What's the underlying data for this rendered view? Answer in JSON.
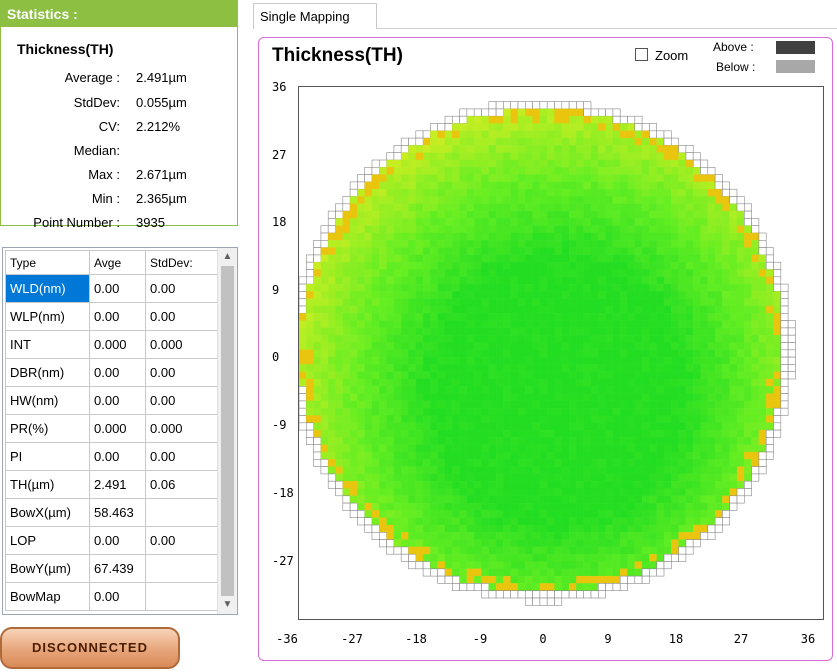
{
  "statistics": {
    "header": "Statistics :",
    "title": "Thickness(TH)",
    "rows": [
      {
        "label": "Average :",
        "value": "2.491µm"
      },
      {
        "label": "StdDev:",
        "value": "0.055µm"
      },
      {
        "label": "CV:",
        "value": "2.212%"
      },
      {
        "label": "Median:",
        "value": ""
      },
      {
        "label": "Max :",
        "value": "2.671µm"
      },
      {
        "label": "Min :",
        "value": "2.365µm"
      },
      {
        "label": "Point Number :",
        "value": "3935"
      }
    ]
  },
  "grid": {
    "columns": [
      "Type",
      "Avge",
      "StdDev:"
    ],
    "rows": [
      [
        "WLD(nm)",
        "0.00",
        "0.00"
      ],
      [
        "WLP(nm)",
        "0.00",
        "0.00"
      ],
      [
        "INT",
        "0.000",
        "0.000"
      ],
      [
        "DBR(nm)",
        "0.00",
        "0.00"
      ],
      [
        "HW(nm)",
        "0.00",
        "0.00"
      ],
      [
        "PR(%)",
        "0.000",
        "0.000"
      ],
      [
        "PI",
        "0.00",
        "0.00"
      ],
      [
        "TH(µm)",
        "2.491",
        "0.06"
      ],
      [
        "BowX(µm)",
        "58.463",
        ""
      ],
      [
        "LOP",
        "0.00",
        "0.00"
      ],
      [
        "BowY(µm)",
        "67.439",
        ""
      ],
      [
        "BowMap",
        "0.00",
        ""
      ]
    ],
    "selected_row": 0
  },
  "status_button": "DISCONNECTED",
  "tab_label": "Single Mapping",
  "map": {
    "title": "Thickness(TH)",
    "zoom_label": "Zoom",
    "zoom_checked": false,
    "above_label": "Above :",
    "below_label": "Below :",
    "above_color": "#404040",
    "below_color": "#a8a8a8",
    "x_ticks": [
      "-36",
      "-27",
      "-18",
      "-9",
      "0",
      "9",
      "18",
      "27",
      "36"
    ],
    "y_ticks": [
      "36",
      "27",
      "18",
      "9",
      "0",
      "-9",
      "-18",
      "-27"
    ],
    "colors": {
      "low": "#22dd22",
      "mid": "#66ee22",
      "high": "#c8ee22",
      "peak": "#ffaa00",
      "outline": "#888888"
    }
  }
}
